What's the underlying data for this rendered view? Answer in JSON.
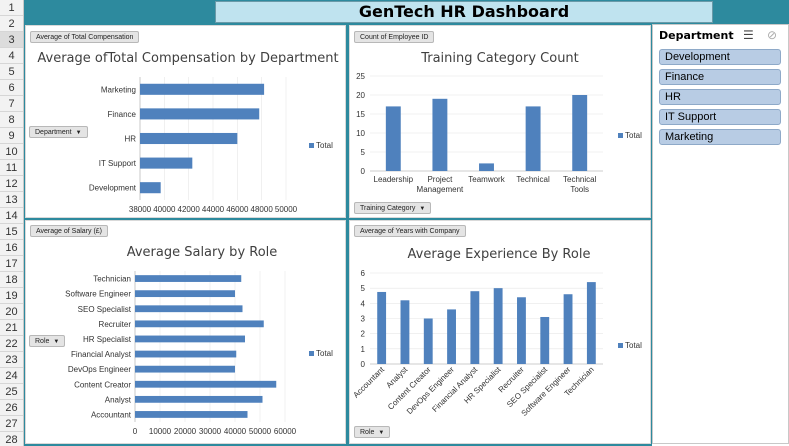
{
  "dashboard": {
    "title": "GenTech HR Dashboard"
  },
  "row_numbers": [
    "1",
    "2",
    "3",
    "4",
    "5",
    "6",
    "7",
    "8",
    "9",
    "10",
    "11",
    "12",
    "13",
    "14",
    "15",
    "16",
    "17",
    "18",
    "19",
    "20",
    "21",
    "22",
    "23",
    "24",
    "25",
    "26",
    "27",
    "28"
  ],
  "colors": {
    "bar": "#4f81bd",
    "frame": "#2d8a9e",
    "title_bg": "#bfe3ef",
    "slicer_item": "#b8cce4"
  },
  "slicer": {
    "title": "Department",
    "multiselect_icon": "multi-select-icon",
    "clear_icon": "clear-filter-icon",
    "items": [
      "Development",
      "Finance",
      "HR",
      "IT Support",
      "Marketing"
    ]
  },
  "charts": {
    "compensation": {
      "value_button": "Average of Total Compensation",
      "axis_button": "Department",
      "chart_data": {
        "type": "bar",
        "orientation": "horizontal",
        "title": "Average ofTotal Compensation by Department",
        "categories": [
          "Marketing",
          "Finance",
          "HR",
          "IT Support",
          "Development"
        ],
        "values": [
          48200,
          47800,
          46000,
          42300,
          39700
        ],
        "series_name": "Total",
        "xlim": [
          38000,
          50000
        ],
        "ticks": [
          "38000",
          "40000",
          "42000",
          "44000",
          "46000",
          "48000",
          "50000"
        ],
        "legend": "right"
      }
    },
    "training": {
      "value_button": "Count of Employee ID",
      "axis_button": "Training Category",
      "chart_data": {
        "type": "bar",
        "orientation": "vertical",
        "title": "Training Category Count",
        "categories": [
          "Leadership",
          "Project Management",
          "Teamwork",
          "Technical",
          "Technical Tools"
        ],
        "values": [
          17,
          19,
          2,
          17,
          20
        ],
        "series_name": "Total",
        "ylim": [
          0,
          25
        ],
        "ticks": [
          "0",
          "5",
          "10",
          "15",
          "20",
          "25"
        ],
        "legend": "right"
      }
    },
    "salary": {
      "value_button": "Average of Salary (£)",
      "axis_button": "Role",
      "chart_data": {
        "type": "bar",
        "orientation": "horizontal",
        "title": "Average Salary by Role",
        "categories": [
          "Technician",
          "Software Engineer",
          "SEO Specialist",
          "Recruiter",
          "HR Specialist",
          "Financial Analyst",
          "DevOps Engineer",
          "Content Creator",
          "Analyst",
          "Accountant"
        ],
        "values": [
          42500,
          40000,
          43000,
          51500,
          44000,
          40500,
          40000,
          56500,
          51000,
          45000
        ],
        "series_name": "Total",
        "xlim": [
          0,
          60000
        ],
        "ticks": [
          "0",
          "10000",
          "20000",
          "30000",
          "40000",
          "50000",
          "60000"
        ],
        "legend": "right"
      }
    },
    "experience": {
      "value_button": "Average of Years with Company",
      "axis_button": "Role",
      "chart_data": {
        "type": "bar",
        "orientation": "vertical",
        "title": "Average Experience By Role",
        "categories": [
          "Accountant",
          "Analyst",
          "Content Creator",
          "DevOps Engineer",
          "Financial Analyst",
          "HR Specialist",
          "Recruiter",
          "SEO Specialist",
          "Software Engineer",
          "Technician"
        ],
        "values": [
          4.75,
          4.2,
          3.0,
          3.6,
          4.8,
          5.0,
          4.4,
          3.1,
          4.6,
          5.4
        ],
        "series_name": "Total",
        "ylim": [
          0,
          6
        ],
        "ticks": [
          "0",
          "1",
          "2",
          "3",
          "4",
          "5",
          "6"
        ],
        "legend": "right"
      }
    }
  }
}
